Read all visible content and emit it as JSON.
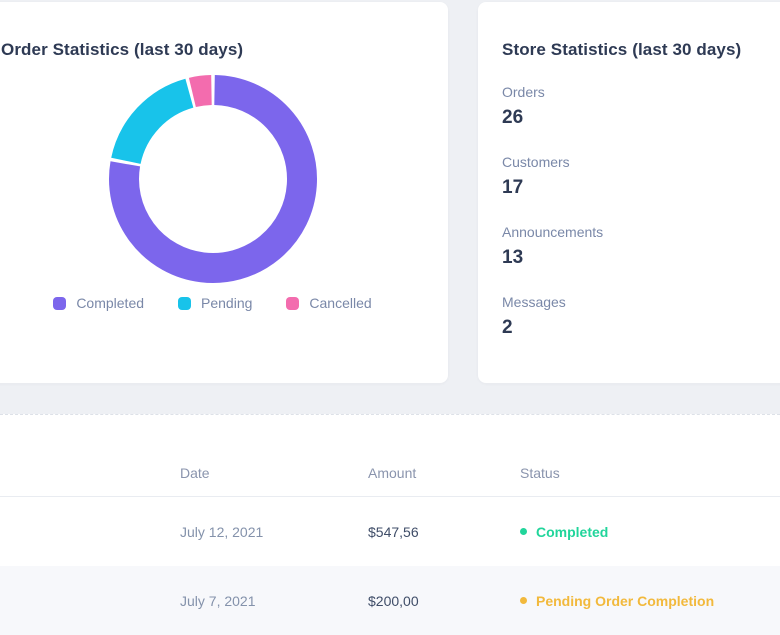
{
  "page": {
    "background": "#eef0f4"
  },
  "order_stats_card": {
    "title": "Order Statistics (last 30 days)"
  },
  "chart_data": {
    "type": "pie",
    "subtype": "donut",
    "title": "Order Statistics (last 30 days)",
    "labels": [
      "Completed",
      "Pending",
      "Cancelled"
    ],
    "values": [
      78,
      18,
      4
    ],
    "unit": "%",
    "colors": [
      "#7c66ec",
      "#18c3ea",
      "#f36cae"
    ],
    "start_angle_deg": 0,
    "direction": "clockwise",
    "inner_radius_ratio": 0.71,
    "segment_gap_deg": 2,
    "legend_position": "bottom"
  },
  "store_stats_card": {
    "title": "Store Statistics (last 30 days)",
    "items": [
      {
        "label": "Orders",
        "value": "26"
      },
      {
        "label": "Customers",
        "value": "17"
      },
      {
        "label": "Announcements",
        "value": "13"
      },
      {
        "label": "Messages",
        "value": "2"
      }
    ]
  },
  "orders_table": {
    "columns": [
      "Date",
      "Amount",
      "Status"
    ],
    "rows": [
      {
        "date": "July 12, 2021",
        "amount": "$547,56",
        "status": "Completed",
        "status_color": "#21d59b"
      },
      {
        "date": "July 7, 2021",
        "amount": "$200,00",
        "status": "Pending Order Completion",
        "status_color": "#f2b93c"
      }
    ]
  }
}
